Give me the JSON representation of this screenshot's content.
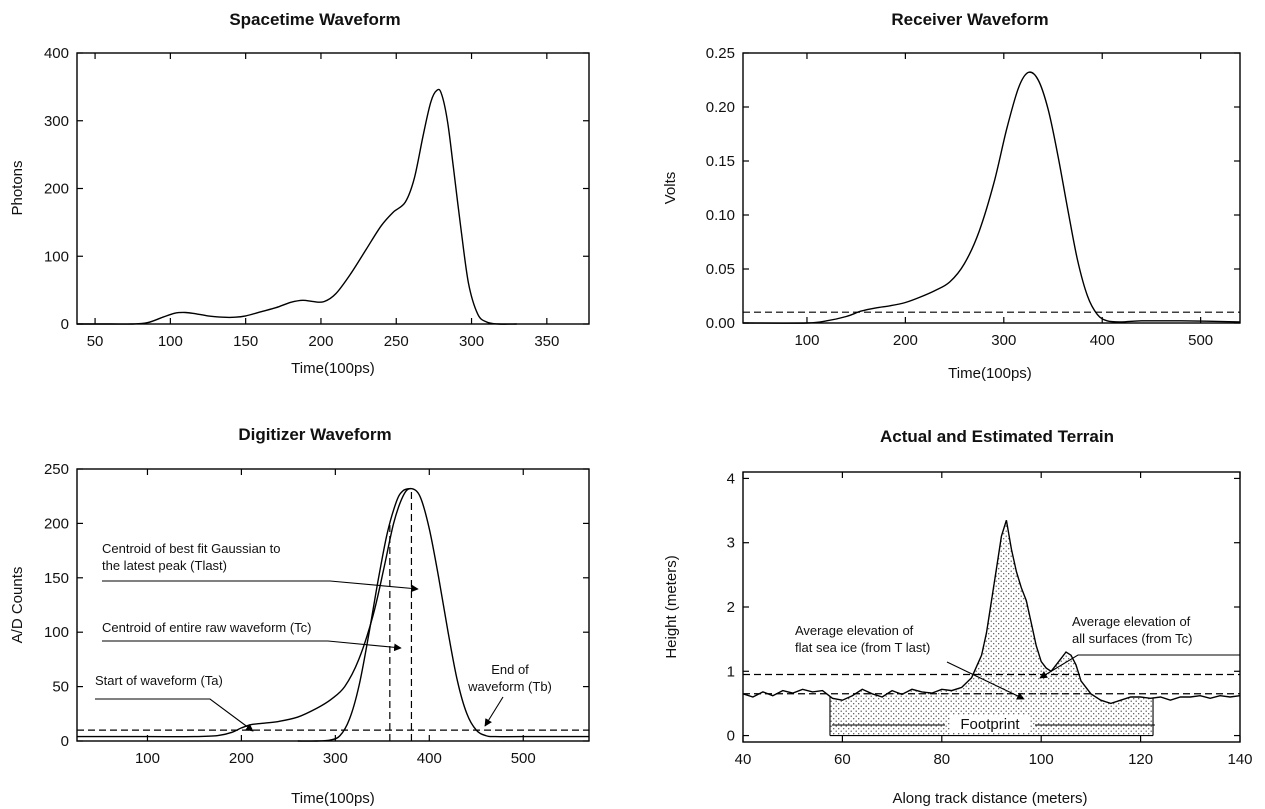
{
  "chart_data": [
    {
      "type": "line",
      "title": "Spacetime Waveform",
      "xlabel": "Time(100ps)",
      "ylabel": "Photons",
      "xlim": [
        38,
        378
      ],
      "ylim": [
        0,
        400
      ],
      "xticks": [
        50,
        100,
        150,
        200,
        250,
        300,
        350
      ],
      "yticks": [
        0,
        100,
        200,
        300,
        400
      ],
      "series": [
        {
          "x": [
            38,
            60,
            75,
            85,
            95,
            103,
            110,
            117,
            125,
            135,
            143,
            150,
            160,
            170,
            180,
            188,
            195,
            202,
            210,
            220,
            230,
            240,
            248,
            256,
            262,
            268,
            273,
            277,
            280,
            284,
            288,
            293,
            298,
            304,
            310,
            318,
            330
          ],
          "y": [
            0,
            0,
            0,
            2,
            10,
            16,
            17,
            15,
            12,
            10,
            10,
            12,
            18,
            24,
            32,
            35,
            33,
            33,
            45,
            75,
            110,
            145,
            165,
            180,
            215,
            280,
            328,
            345,
            340,
            300,
            230,
            140,
            60,
            15,
            3,
            0,
            0
          ]
        }
      ]
    },
    {
      "type": "line",
      "title": "Receiver  Waveform",
      "xlabel": "Time(100ps)",
      "ylabel": "Volts",
      "xlim": [
        35,
        540
      ],
      "ylim": [
        0,
        0.25
      ],
      "xticks": [
        100,
        200,
        300,
        400,
        500
      ],
      "yticks": [
        0.0,
        0.05,
        0.1,
        0.15,
        0.2,
        0.25
      ],
      "ytick_labels": [
        "0.00",
        "0.05",
        "0.10",
        "0.15",
        "0.20",
        "0.25"
      ],
      "threshold": 0.01,
      "series": [
        {
          "x": [
            35,
            100,
            120,
            140,
            155,
            170,
            185,
            200,
            215,
            230,
            245,
            260,
            275,
            290,
            303,
            315,
            325,
            335,
            345,
            355,
            365,
            375,
            385,
            395,
            405,
            420,
            440,
            480,
            540
          ],
          "y": [
            0,
            0,
            0.002,
            0.006,
            0.011,
            0.014,
            0.016,
            0.019,
            0.024,
            0.03,
            0.038,
            0.055,
            0.085,
            0.13,
            0.18,
            0.218,
            0.232,
            0.225,
            0.198,
            0.155,
            0.105,
            0.058,
            0.025,
            0.008,
            0.002,
            0.001,
            0.002,
            0.002,
            0.001
          ]
        }
      ]
    },
    {
      "type": "line",
      "title": "Digitizer Waveform",
      "xlabel": "Time(100ps)",
      "ylabel": "A/D Counts",
      "xlim": [
        25,
        570
      ],
      "ylim": [
        0,
        250
      ],
      "xticks": [
        100,
        200,
        300,
        400,
        500
      ],
      "yticks": [
        0,
        50,
        100,
        150,
        200,
        250
      ],
      "threshold": 10,
      "markers": {
        "Tc": 358,
        "Tlast": 381
      },
      "series": [
        {
          "name": "raw waveform",
          "x": [
            25,
            100,
            150,
            175,
            190,
            200,
            210,
            220,
            240,
            260,
            280,
            295,
            310,
            325,
            340,
            352,
            362,
            372,
            380,
            390,
            400,
            410,
            420,
            430,
            440,
            450,
            460,
            470,
            500,
            570
          ],
          "y": [
            4,
            4,
            4,
            5,
            8,
            12,
            15,
            16,
            18,
            22,
            30,
            38,
            50,
            75,
            115,
            160,
            200,
            225,
            232,
            225,
            195,
            150,
            100,
            55,
            25,
            10,
            5,
            4,
            4,
            4
          ]
        },
        {
          "name": "best fit Gaussian",
          "x": [
            260,
            280,
            295,
            305,
            315,
            325,
            335,
            345,
            355,
            365,
            372,
            380
          ],
          "y": [
            0,
            0,
            1,
            5,
            20,
            50,
            95,
            145,
            190,
            220,
            230,
            232
          ]
        }
      ]
    },
    {
      "type": "area",
      "title": "Actual and Estimated Terrain",
      "xlabel": "Along track distance (meters)",
      "ylabel": "Height (meters)",
      "xlim": [
        40,
        140
      ],
      "ylim": [
        -0.1,
        4.1
      ],
      "xticks": [
        40,
        60,
        80,
        100,
        120,
        140
      ],
      "yticks": [
        0,
        1,
        2,
        3,
        4
      ],
      "footprint": [
        57.5,
        122.5
      ],
      "avg_all": 0.95,
      "avg_flat": 0.65,
      "series": [
        {
          "name": "terrain",
          "x": [
            40,
            42,
            44,
            46,
            48,
            50,
            52,
            54,
            56,
            58,
            60,
            62,
            64,
            66,
            68,
            70,
            72,
            74,
            76,
            78,
            80,
            82,
            84,
            86,
            88,
            89,
            90,
            91,
            92,
            93,
            94,
            95,
            96,
            97,
            98,
            99,
            100,
            101,
            102,
            103,
            104,
            105,
            106,
            107,
            108,
            110,
            112,
            114,
            116,
            118,
            120,
            122,
            124,
            126,
            128,
            130,
            132,
            134,
            136,
            138,
            140
          ],
          "y": [
            0.65,
            0.6,
            0.68,
            0.62,
            0.7,
            0.66,
            0.72,
            0.68,
            0.7,
            0.58,
            0.55,
            0.62,
            0.72,
            0.65,
            0.6,
            0.7,
            0.64,
            0.72,
            0.68,
            0.66,
            0.72,
            0.7,
            0.75,
            0.9,
            1.25,
            1.6,
            2.1,
            2.6,
            3.1,
            3.35,
            2.9,
            2.55,
            2.3,
            2.1,
            1.75,
            1.4,
            1.15,
            1.05,
            1.0,
            1.1,
            1.2,
            1.3,
            1.25,
            1.1,
            0.85,
            0.65,
            0.55,
            0.5,
            0.55,
            0.6,
            0.6,
            0.58,
            0.6,
            0.55,
            0.6,
            0.6,
            0.62,
            0.58,
            0.62,
            0.6,
            0.62
          ]
        }
      ]
    }
  ],
  "annotations": {
    "tlast_1": "Centroid of best fit Gaussian to",
    "tlast_2": "the latest peak (Tlast)",
    "tc": "Centroid of entire raw waveform (Tc)",
    "ta": "Start of waveform (Ta)",
    "tb_1": "End  of",
    "tb_2": "waveform (Tb)",
    "flat_1": "Average elevation of",
    "flat_2": "flat sea ice (from T last)",
    "all_1": "Average elevation of",
    "all_2": "all surfaces (from Tc)",
    "footprint": "Footprint"
  }
}
